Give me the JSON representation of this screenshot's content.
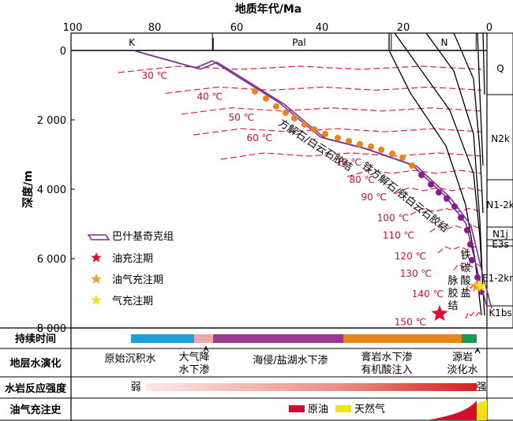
{
  "chart_data": {
    "type": "line",
    "title": "",
    "x_axis": {
      "label": "地质年代/Ma",
      "range": [
        100,
        0
      ],
      "ticks": [
        "100",
        "80",
        "60",
        "40",
        "20",
        "0"
      ]
    },
    "y_axis": {
      "label": "深度/m",
      "range": [
        0,
        8000
      ],
      "ticks": [
        "0",
        "2 000",
        "4 000",
        "6 000",
        "8 000"
      ]
    },
    "periods": [
      "K",
      "Pal",
      "N",
      "Q"
    ],
    "strata": [
      "Q",
      "N2k",
      "N1-2k",
      "N1j",
      "E3s",
      "E1-2km",
      "K1bs"
    ],
    "series": [
      {
        "name": "巴什基奇克组",
        "points": [
          [
            85,
            0
          ],
          [
            70,
            500
          ],
          [
            66,
            300
          ],
          [
            50,
            1500
          ],
          [
            40,
            2500
          ],
          [
            30,
            2800
          ],
          [
            18,
            3300
          ],
          [
            10,
            4200
          ],
          [
            5,
            5000
          ],
          [
            2,
            6500
          ],
          [
            0,
            7400
          ]
        ]
      }
    ],
    "isotherms": [
      {
        "label": "30 ℃",
        "depth": 500
      },
      {
        "label": "40 ℃",
        "depth": 1100
      },
      {
        "label": "50 ℃",
        "depth": 1700
      },
      {
        "label": "60 ℃",
        "depth": 2300
      },
      {
        "label": "70 ℃",
        "depth": 3000
      },
      {
        "label": "80 ℃",
        "depth": 3500
      },
      {
        "label": "90 ℃",
        "depth": 4000
      },
      {
        "label": "100 ℃",
        "depth": 4600
      },
      {
        "label": "110 ℃",
        "depth": 5100
      },
      {
        "label": "120 ℃",
        "depth": 5700
      },
      {
        "label": "130 ℃",
        "depth": 6200
      },
      {
        "label": "140 ℃",
        "depth": 6800
      },
      {
        "label": "150 ℃",
        "depth": 7600
      }
    ],
    "cement_labels": [
      "方解石/白云石胶结",
      "铁方解石/铁白云石胶结",
      "铁碳酸盐",
      "脉胶结"
    ],
    "legend": [
      "巴什基奇克组",
      "油充注期",
      "油气充注期",
      "气充注期"
    ],
    "colors": {
      "burial": "#7b2d8e",
      "isotherm": "#e0203a",
      "calcite": "#e8841a",
      "ferro": "#8b1a8b",
      "oil_star": "#e01030",
      "oilgas_star": "#f0a030",
      "gas_star": "#f7e01a"
    }
  },
  "rows": {
    "duration": "持续时间",
    "water": "地层水演化",
    "reaction": "水岩反应强度",
    "charge": "油气充注史"
  },
  "water_stages": {
    "s1": "原始沉积水",
    "s2a": "大气降",
    "s2b": "水下渗",
    "s3": "海侵/盐湖水下渗",
    "s4a": "膏岩水下渗",
    "s4b": "有机酸注入",
    "s5a": "源岩",
    "s5b": "淡化水"
  },
  "reaction_labels": {
    "weak": "弱",
    "strong": "强"
  },
  "charge_legend": {
    "oil": "原油",
    "gas": "天然气"
  }
}
